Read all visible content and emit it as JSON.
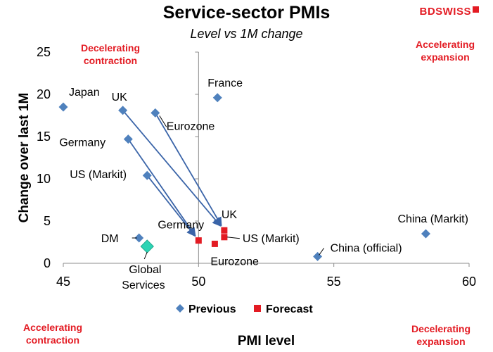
{
  "logo": {
    "text": "BDSWISS"
  },
  "chart_data": {
    "type": "scatter",
    "title": "Service-sector PMIs",
    "subtitle": "Level vs 1M change",
    "xlabel": "PMI level",
    "ylabel": "Change over last 1M",
    "xlim": [
      45,
      60
    ],
    "ylim": [
      0,
      25
    ],
    "x_ticks": [
      "45",
      "50",
      "55",
      "60"
    ],
    "y_ticks": [
      "0",
      "5",
      "10",
      "15",
      "20",
      "25"
    ],
    "legend_position": "bottom",
    "grid": false,
    "quadrants": {
      "top_left": [
        "Decelerating",
        "contraction"
      ],
      "top_right": [
        "Accelerating",
        "expansion"
      ],
      "bottom_left": [
        "Accelerating",
        "contraction"
      ],
      "bottom_right": [
        "Decelerating",
        "expansion"
      ]
    },
    "series": [
      {
        "name": "Previous",
        "color": "#4f81bd",
        "marker": "diamond",
        "points": [
          {
            "label": "Japan",
            "x": 45.0,
            "y": 18.5
          },
          {
            "label": "UK",
            "x": 47.2,
            "y": 18.1
          },
          {
            "label": "Eurozone",
            "x": 48.4,
            "y": 17.8
          },
          {
            "label": "Germany",
            "x": 47.4,
            "y": 14.7
          },
          {
            "label": "US (Markit)",
            "x": 48.1,
            "y": 10.4
          },
          {
            "label": "France",
            "x": 50.7,
            "y": 19.6
          },
          {
            "label": "DM",
            "x": 47.8,
            "y": 3.0
          },
          {
            "label": "China (official)",
            "x": 54.4,
            "y": 0.8
          },
          {
            "label": "China (Markit)",
            "x": 58.4,
            "y": 3.5
          }
        ]
      },
      {
        "name": "Forecast",
        "color": "#e31b23",
        "marker": "square",
        "points": [
          {
            "label": "UK",
            "x": 50.95,
            "y": 3.9
          },
          {
            "label": "US (Markit)",
            "x": 50.95,
            "y": 3.1
          },
          {
            "label": "Germany",
            "x": 50.0,
            "y": 2.7
          },
          {
            "label": "Eurozone",
            "x": 50.6,
            "y": 2.3
          }
        ]
      },
      {
        "name": "Global Services",
        "color": "#2bd4b4",
        "marker": "diamond",
        "points": [
          {
            "label": "Global Services",
            "x": 48.1,
            "y": 2.0
          }
        ]
      }
    ],
    "arrows": [
      {
        "from": "UK",
        "to": "UK"
      },
      {
        "from": "Eurozone",
        "to": "UK"
      },
      {
        "from": "Germany",
        "to": "Germany"
      },
      {
        "from": "US (Markit)",
        "to": "Germany"
      }
    ]
  }
}
